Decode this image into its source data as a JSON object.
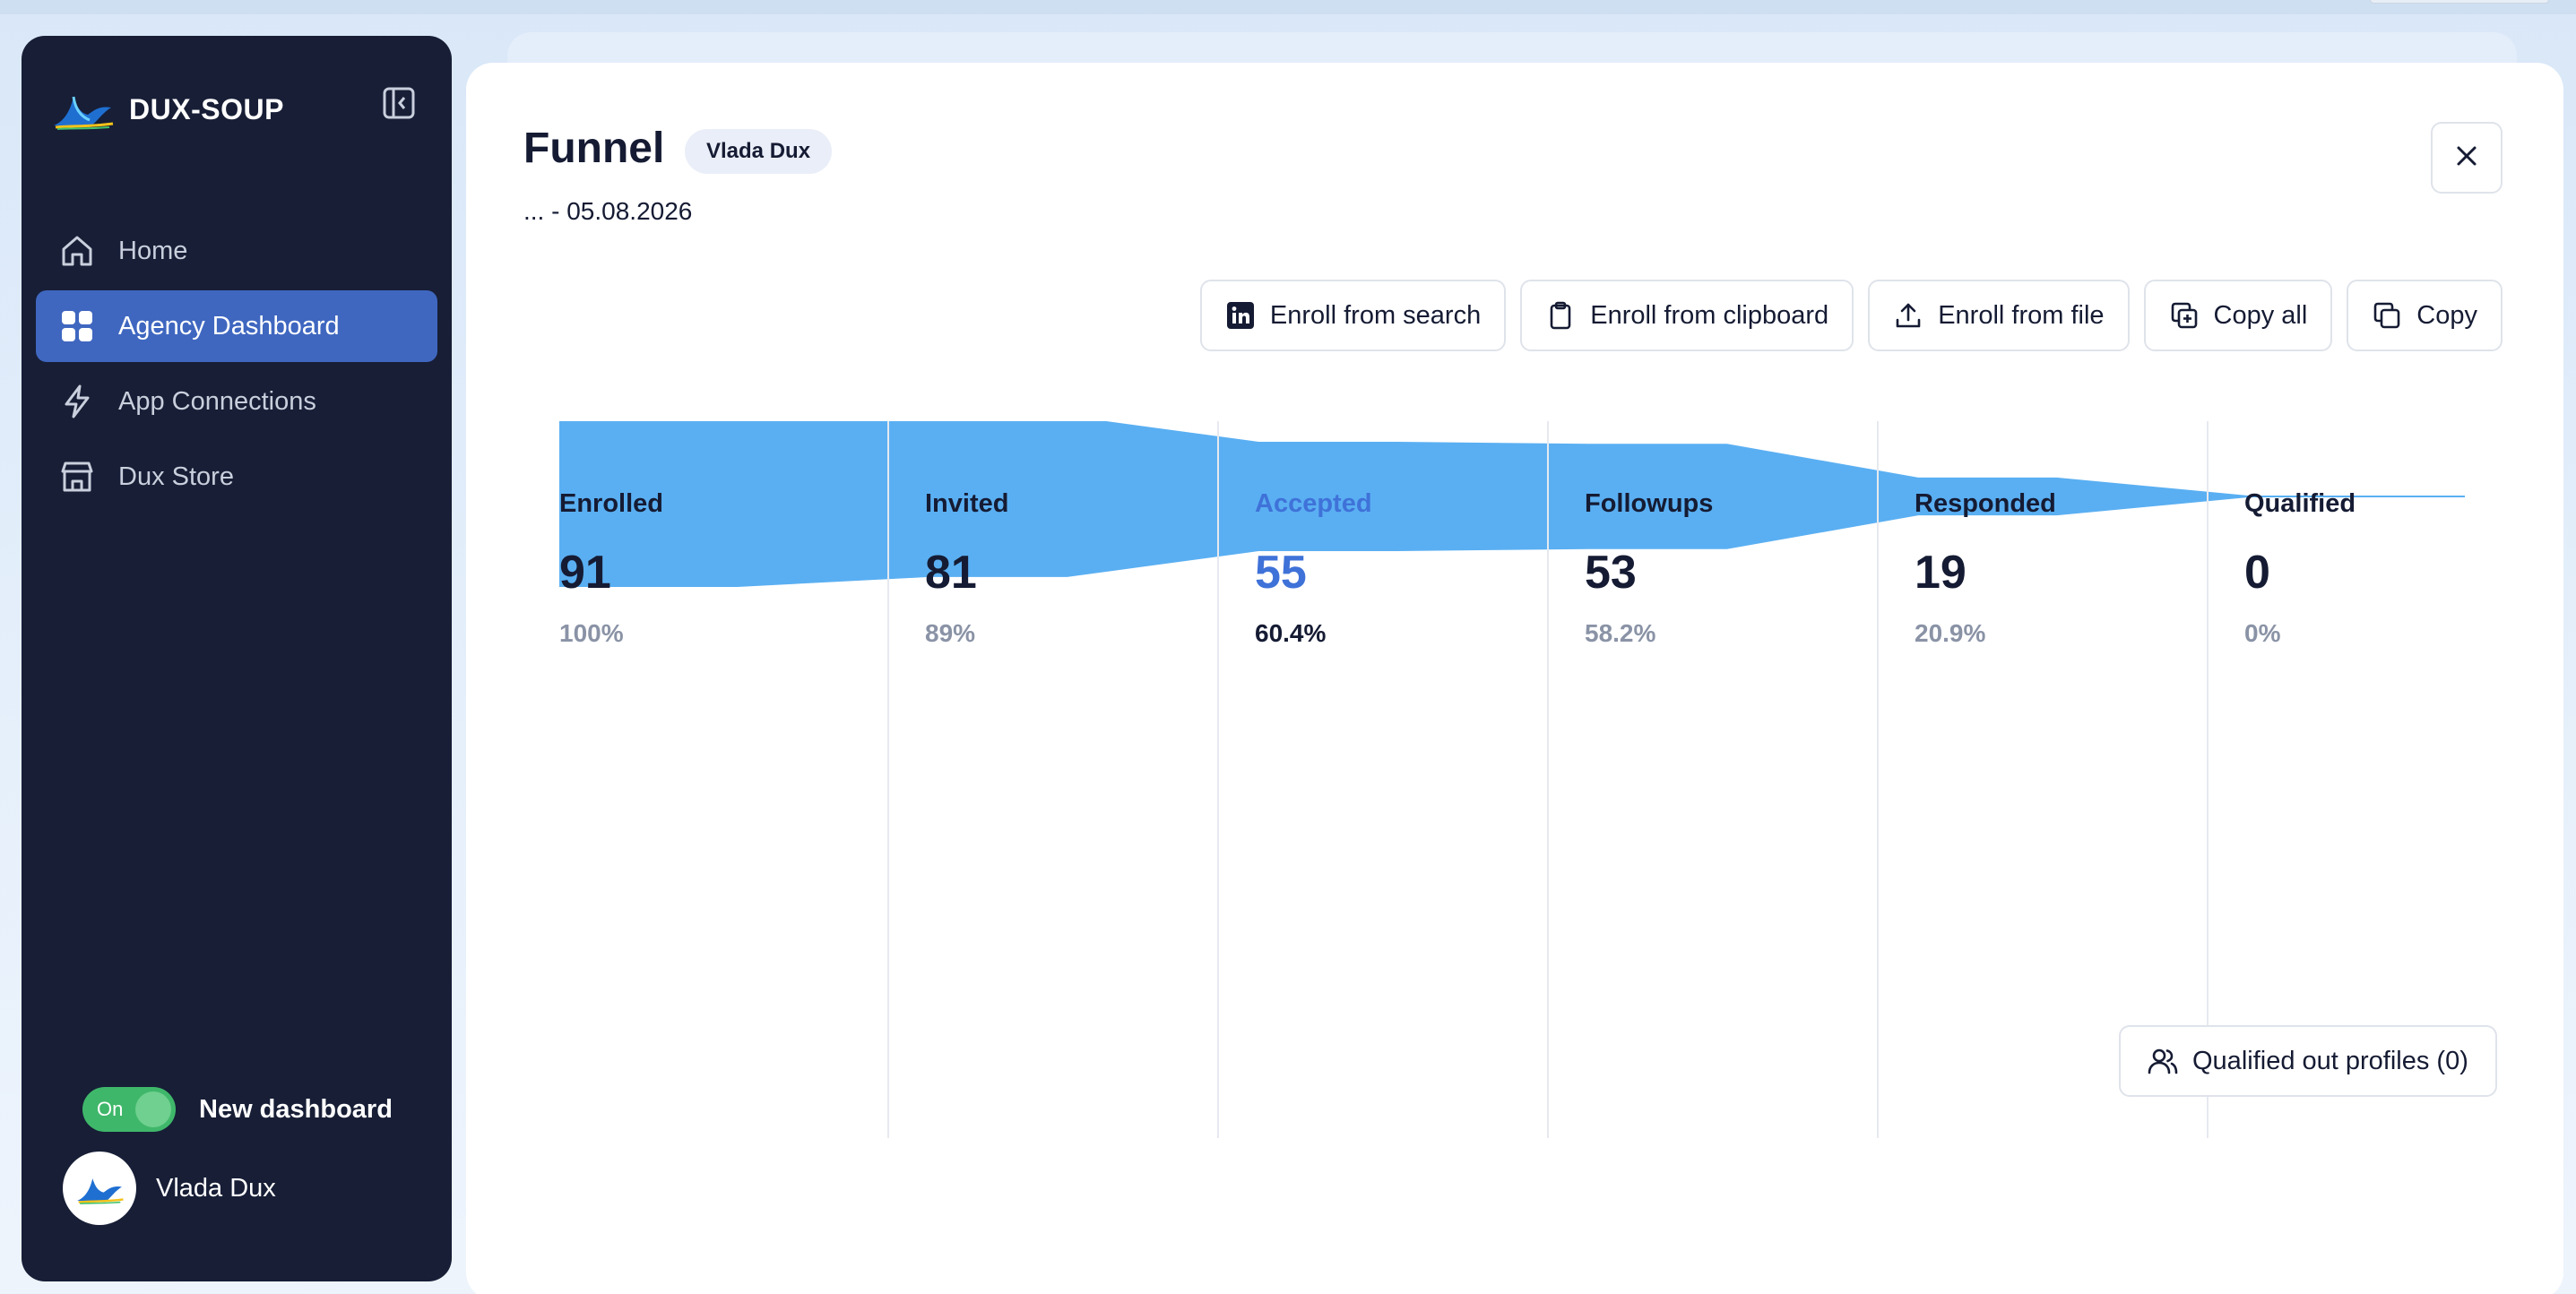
{
  "brand": {
    "name": "DUX-SOUP",
    "logo_icon": "dux-bird-logo-icon"
  },
  "sidebar": {
    "items": [
      {
        "label": "Home",
        "icon": "home-icon",
        "active": false
      },
      {
        "label": "Agency Dashboard",
        "icon": "grid-icon",
        "active": true
      },
      {
        "label": "App Connections",
        "icon": "bolt-icon",
        "active": false
      },
      {
        "label": "Dux Store",
        "icon": "store-icon",
        "active": false
      }
    ],
    "toggle": {
      "state_label": "On",
      "label": "New dashboard",
      "on": true
    },
    "user": {
      "name": "Vlada Dux"
    }
  },
  "panel": {
    "title": "Funnel",
    "badge": "Vlada Dux",
    "date_range": "... - 05.08.2026"
  },
  "actions": [
    {
      "label": "Enroll from search",
      "icon": "linkedin-icon"
    },
    {
      "label": "Enroll from clipboard",
      "icon": "clipboard-icon"
    },
    {
      "label": "Enroll from file",
      "icon": "upload-icon"
    },
    {
      "label": "Copy all",
      "icon": "copy-plus-icon"
    },
    {
      "label": "Copy",
      "icon": "copy-icon"
    }
  ],
  "qualified_out": {
    "label": "Qualified out profiles (0)",
    "icon": "users-icon"
  },
  "colors": {
    "sidebar_bg": "#171e36",
    "active_nav": "#3f67c0",
    "funnel_fill": "#5aaff2",
    "highlight": "#3f72d8",
    "toggle_on": "#3fb76a"
  },
  "chart_data": {
    "type": "area",
    "categories": [
      "Enrolled",
      "Invited",
      "Accepted",
      "Followups",
      "Responded",
      "Qualified"
    ],
    "values": [
      91,
      81,
      55,
      53,
      19,
      0
    ],
    "percent_labels": [
      "100%",
      "89%",
      "60.4%",
      "58.2%",
      "20.9%",
      "0%"
    ],
    "highlighted": "Accepted"
  }
}
